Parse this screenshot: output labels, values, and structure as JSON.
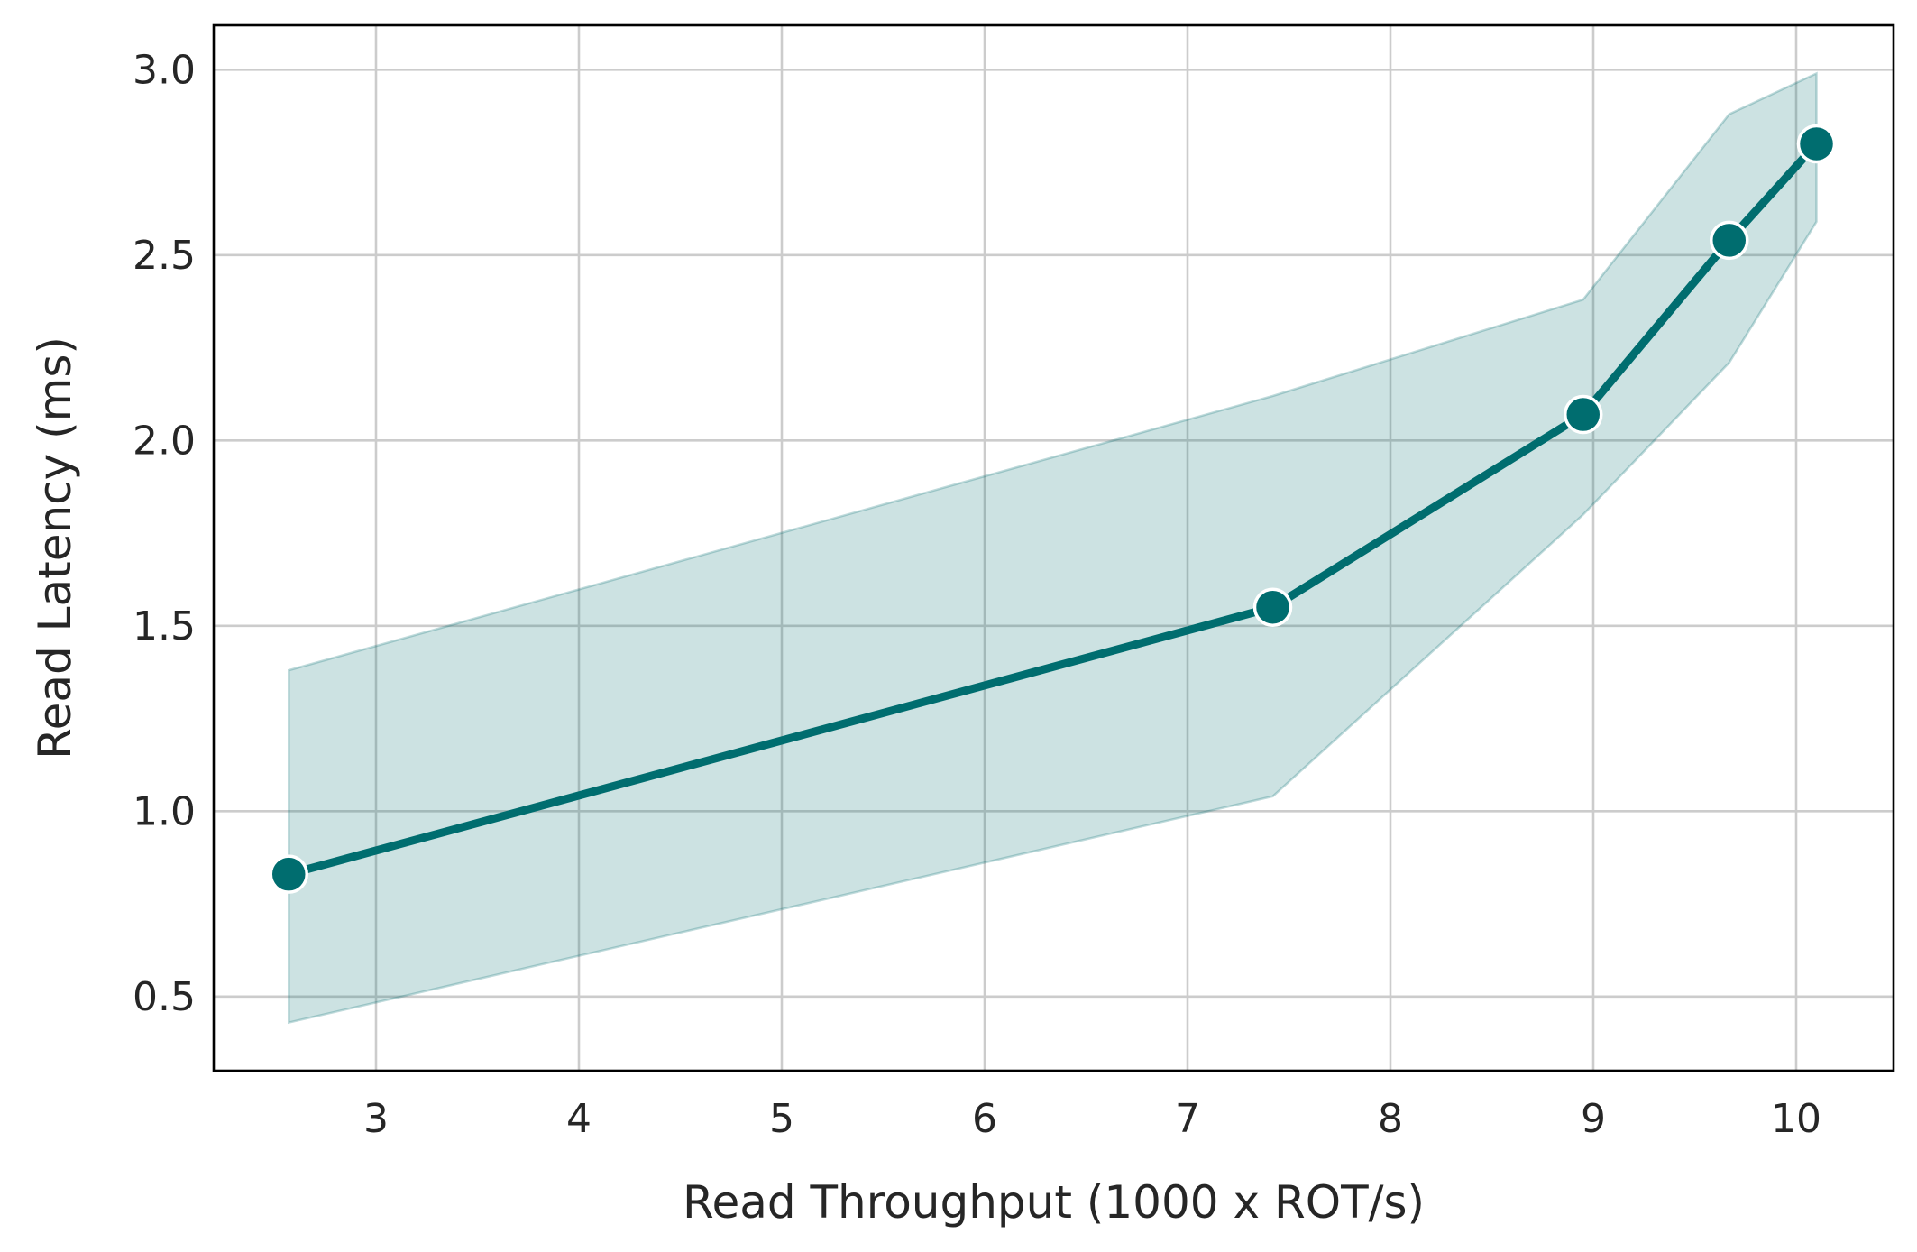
{
  "chart_data": {
    "type": "line",
    "title": "",
    "xlabel": "Read Throughput (1000 x ROT/s)",
    "ylabel": "Read Latency (ms)",
    "xlim": [
      2.2,
      10.48
    ],
    "ylim": [
      0.3,
      3.12
    ],
    "xticks": [
      3,
      4,
      5,
      6,
      7,
      8,
      9,
      10
    ],
    "yticks": [
      0.5,
      1.0,
      1.5,
      2.0,
      2.5,
      3.0
    ],
    "xtick_labels": [
      "3",
      "4",
      "5",
      "6",
      "7",
      "8",
      "9",
      "10"
    ],
    "ytick_labels": [
      "0.5",
      "1.0",
      "1.5",
      "2.0",
      "2.5",
      "3.0"
    ],
    "grid": true,
    "legend": "none",
    "series": [
      {
        "x": [
          2.57,
          7.42,
          8.95,
          9.67,
          10.1
        ],
        "y": [
          0.83,
          1.55,
          2.07,
          2.54,
          2.8
        ],
        "lower": [
          0.43,
          1.04,
          1.8,
          2.21,
          2.59
        ],
        "upper": [
          1.38,
          2.12,
          2.38,
          2.88,
          2.99
        ],
        "color": "#006d6f",
        "band_color": "#006d6f",
        "marker": "circle"
      }
    ]
  }
}
